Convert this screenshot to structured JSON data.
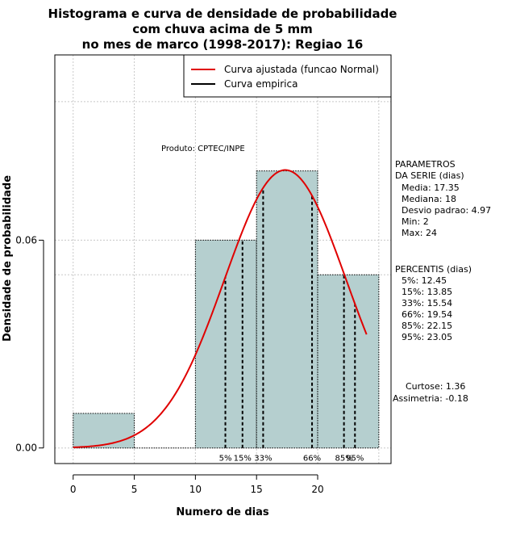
{
  "chart_data": {
    "type": "histogram",
    "title_lines": [
      "Histograma e curva de densidade de probabilidade",
      "com chuva acima de 5 mm",
      "no mes de marco (1998-2017): Regiao 16"
    ],
    "xlabel": "Numero de dias",
    "ylabel": "Densidade de probabilidade",
    "xlim": [
      -1.5,
      26
    ],
    "ylim": [
      -0.0045,
      0.1135
    ],
    "x_ticks": [
      0,
      5,
      10,
      15,
      20
    ],
    "y_ticks": [
      0.0,
      0.06
    ],
    "y_tick_labels": [
      "0.00",
      "0.06"
    ],
    "grid_x": [
      0,
      5,
      10,
      15,
      20,
      25
    ],
    "grid_y": [
      0.0,
      0.05,
      0.06,
      0.1
    ],
    "bins": [
      {
        "start": 0,
        "end": 5,
        "density": 0.01
      },
      {
        "start": 5,
        "end": 10,
        "density": 0.0
      },
      {
        "start": 10,
        "end": 15,
        "density": 0.06
      },
      {
        "start": 15,
        "end": 20,
        "density": 0.08
      },
      {
        "start": 20,
        "end": 25,
        "density": 0.05
      }
    ],
    "bar_color": "#b5cfcf",
    "curve_color": "#e00000",
    "normal_fit": {
      "mean": 17.35,
      "sd": 4.97,
      "x_from": 0,
      "x_to": 24
    },
    "legend": [
      {
        "label": "Curva ajustada (funcao Normal)",
        "color": "#e00000"
      },
      {
        "label": "Curva empirica",
        "color": "#000000"
      }
    ],
    "legend_position": "top-right",
    "product_label": "Produto: CPTEC/INPE",
    "percentiles": [
      {
        "label": "5%",
        "value": 12.45
      },
      {
        "label": "15%",
        "value": 13.85
      },
      {
        "label": "33%",
        "value": 15.54
      },
      {
        "label": "66%",
        "value": 19.54
      },
      {
        "label": "85%",
        "value": 22.15
      },
      {
        "label": "95%",
        "value": 23.05
      }
    ],
    "parametros": {
      "header": [
        "PARAMETROS",
        "DA SERIE (dias)"
      ],
      "lines": [
        "Media: 17.35",
        "Mediana: 18",
        "Desvio padrao: 4.97",
        "Min: 2",
        "Max: 24"
      ]
    },
    "percentis_block": {
      "header": "PERCENTIS (dias)",
      "lines": [
        "5%: 12.45",
        "15%: 13.85",
        "33%: 15.54",
        "66%: 19.54",
        "85%: 22.15",
        "95%: 23.05"
      ]
    },
    "stats_lines": [
      "Curtose: 1.36",
      "Assimetria: -0.18"
    ]
  }
}
